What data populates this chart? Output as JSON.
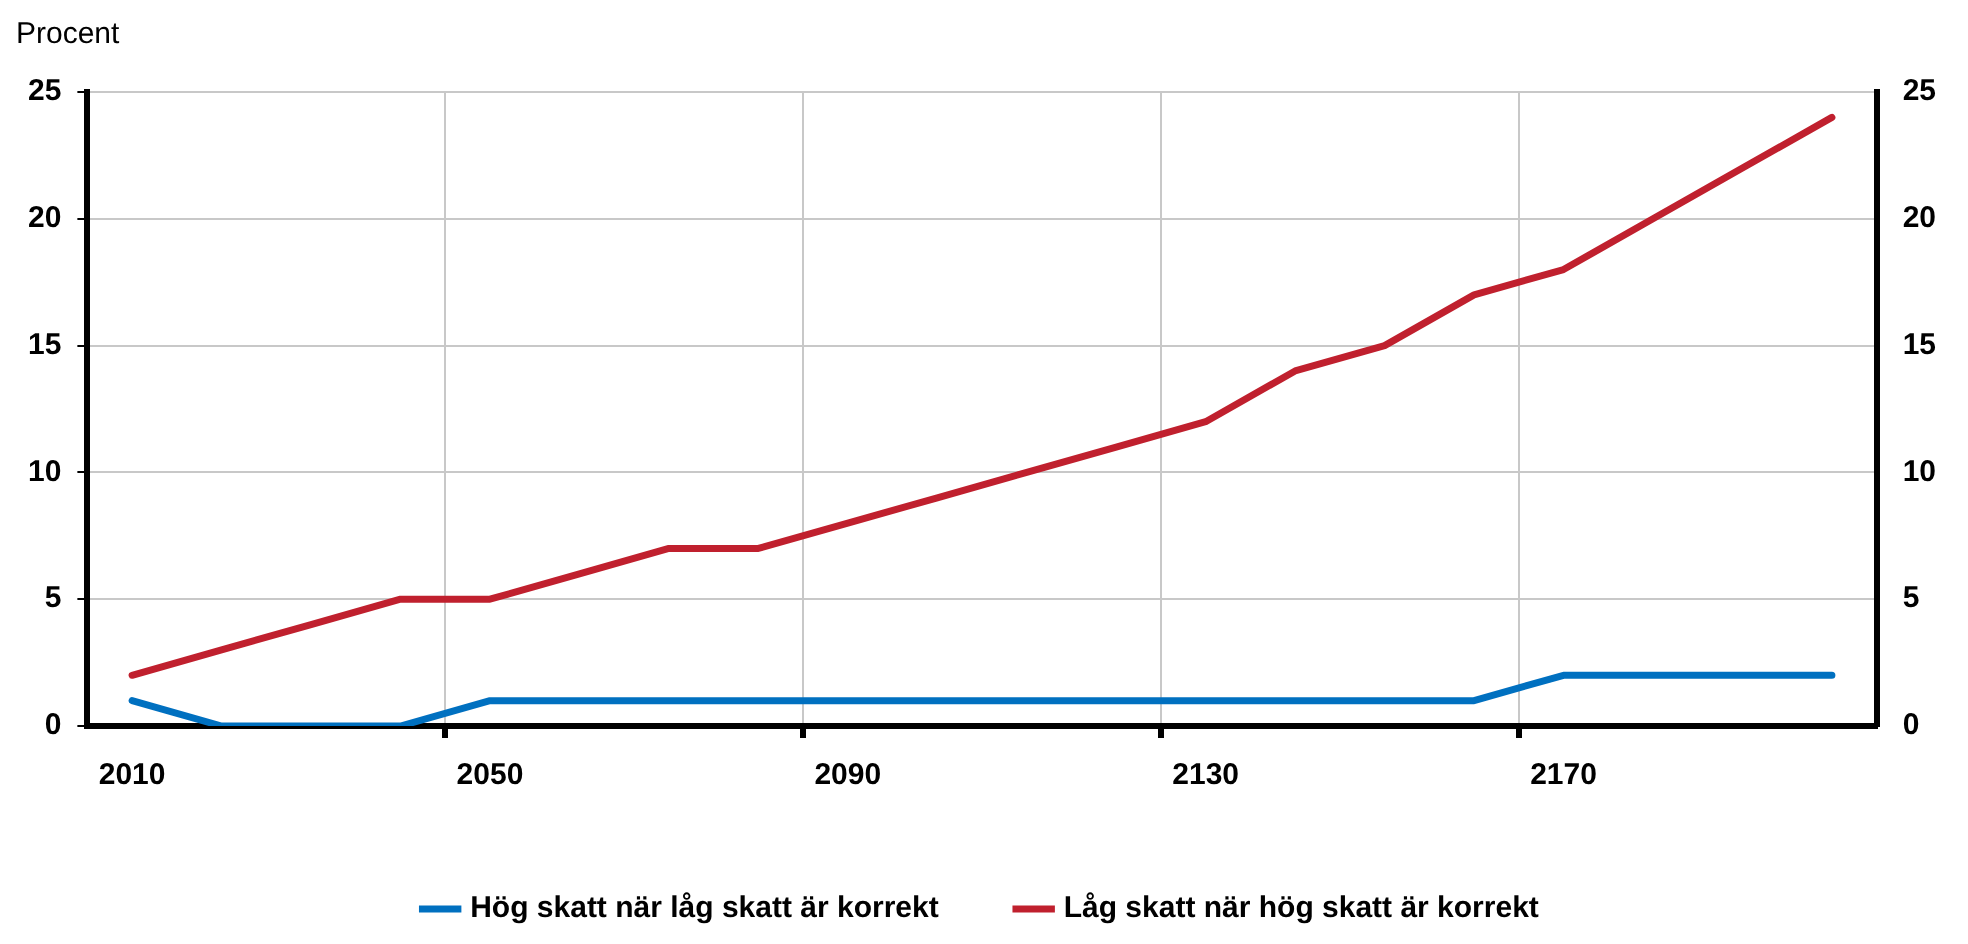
{
  "chart_data": {
    "type": "line",
    "ylabel": "Procent",
    "categories": [
      "2010",
      null,
      null,
      null,
      "2050",
      null,
      null,
      null,
      "2090",
      null,
      null,
      null,
      "2130",
      null,
      null,
      null,
      "2170",
      null,
      null,
      null
    ],
    "series": [
      {
        "name": "Hög skatt när låg skatt är korrekt",
        "color": "#0070c0",
        "values": [
          1,
          0,
          0,
          0,
          1,
          1,
          1,
          1,
          1,
          1,
          1,
          1,
          1,
          1,
          1,
          1,
          2,
          2,
          2,
          2
        ]
      },
      {
        "name": "Låg skatt när hög skatt är korrekt",
        "color": "#c0202e",
        "values": [
          2,
          3,
          4,
          5,
          5,
          6,
          7,
          7,
          8,
          9,
          10,
          11,
          12,
          14,
          15,
          17,
          18,
          20,
          22,
          24
        ]
      }
    ],
    "ylim": [
      0,
      25
    ],
    "yticks": [
      0,
      5,
      10,
      15,
      20,
      25
    ],
    "y2lim": [
      0,
      25
    ],
    "y2ticks": [
      0,
      5,
      10,
      15,
      20,
      25
    ],
    "grid": true,
    "legend": "bottom",
    "marker": "none",
    "line_style": "solid"
  }
}
